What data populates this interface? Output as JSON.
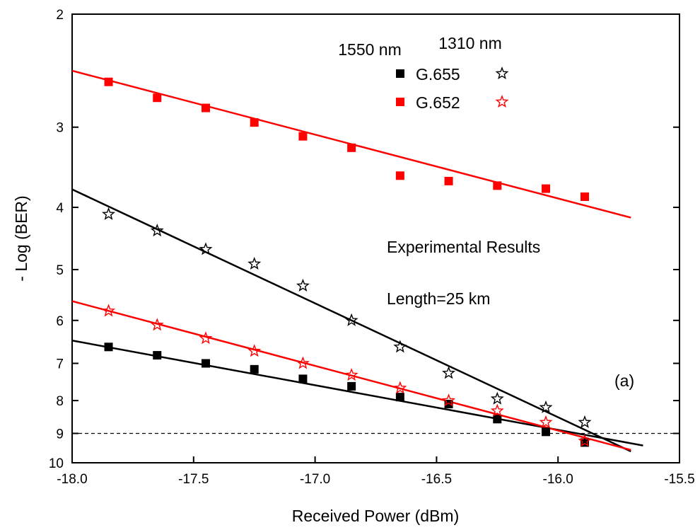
{
  "chart_data": {
    "type": "scatter",
    "xlabel": "Received Power (dBm)",
    "ylabel": "- Log (BER)",
    "xlim": [
      -18.0,
      -15.5
    ],
    "ylim": [
      2,
      10
    ],
    "y_scale": "log",
    "y_inverted": true,
    "grid": false,
    "x_ticks": [
      -18.0,
      -17.5,
      -17.0,
      -16.5,
      -16.0,
      -15.5
    ],
    "x_tick_labels": [
      "-18.0",
      "-17.5",
      "-17.0",
      "-16.5",
      "-16.0",
      "-15.5"
    ],
    "y_ticks": [
      2,
      3,
      4,
      5,
      6,
      7,
      8,
      9,
      10
    ],
    "y_tick_labels": [
      "2",
      "3",
      "4",
      "5",
      "6",
      "7",
      "8",
      "9",
      "10"
    ],
    "legend": {
      "placement": "top-center",
      "col_headers": [
        "1550 nm",
        "1310 nm"
      ],
      "rows": [
        "G.655",
        "G.652"
      ]
    },
    "annotations": [
      "Experimental Results",
      "Length=25 km",
      "(a)"
    ],
    "reference_line": {
      "y": 9,
      "style": "dashed",
      "color": "#000000"
    },
    "series": [
      {
        "name": "G.655 1550 nm",
        "marker": "square",
        "color": "#000000",
        "x": [
          -17.85,
          -17.65,
          -17.45,
          -17.25,
          -17.05,
          -16.85,
          -16.65,
          -16.45,
          -16.25,
          -16.05,
          -15.89
        ],
        "y": [
          6.6,
          6.8,
          7.0,
          7.15,
          7.4,
          7.6,
          7.9,
          8.1,
          8.55,
          8.95,
          9.3
        ],
        "fit": {
          "x": [
            -18.0,
            -15.65
          ],
          "y": [
            6.45,
            9.4
          ]
        }
      },
      {
        "name": "G.655 1310 nm",
        "marker": "star-open",
        "color": "#000000",
        "x": [
          -17.85,
          -17.65,
          -17.45,
          -17.25,
          -17.05,
          -16.85,
          -16.65,
          -16.45,
          -16.25,
          -16.05,
          -15.89
        ],
        "y": [
          4.1,
          4.35,
          4.65,
          4.9,
          5.3,
          6.0,
          6.6,
          7.25,
          7.95,
          8.2,
          8.65
        ],
        "fit": {
          "x": [
            -18.0,
            -15.7
          ],
          "y": [
            3.75,
            9.6
          ]
        }
      },
      {
        "name": "G.652 1550 nm",
        "marker": "square",
        "color": "#ff0000",
        "x": [
          -17.85,
          -17.65,
          -17.45,
          -17.25,
          -17.05,
          -16.85,
          -16.65,
          -16.45,
          -16.25,
          -16.05,
          -15.89
        ],
        "y": [
          2.55,
          2.7,
          2.8,
          2.95,
          3.1,
          3.23,
          3.57,
          3.64,
          3.7,
          3.74,
          3.85
        ],
        "fit": {
          "x": [
            -18.0,
            -15.7
          ],
          "y": [
            2.45,
            4.15
          ]
        }
      },
      {
        "name": "G.652 1310 nm",
        "marker": "star-open",
        "color": "#ff0000",
        "x": [
          -17.85,
          -17.65,
          -17.45,
          -17.25,
          -17.05,
          -16.85,
          -16.65,
          -16.45,
          -16.25,
          -16.05,
          -15.89
        ],
        "y": [
          5.8,
          6.1,
          6.4,
          6.7,
          7.0,
          7.3,
          7.65,
          8.0,
          8.3,
          8.65,
          9.25
        ],
        "fit": {
          "x": [
            -18.0,
            -15.7
          ],
          "y": [
            5.6,
            9.55
          ]
        }
      }
    ]
  }
}
